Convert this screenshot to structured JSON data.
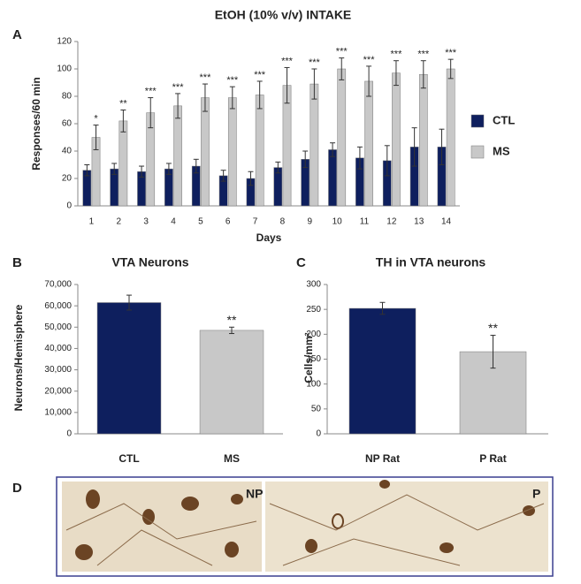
{
  "chart_data": [
    {
      "type": "bar",
      "label": "A",
      "title": "EtOH (10% v/v)  INTAKE",
      "y_label": "Responses/60 min",
      "x_label": "Days",
      "categories": [
        "1",
        "2",
        "3",
        "4",
        "5",
        "6",
        "7",
        "8",
        "9",
        "10",
        "11",
        "12",
        "13",
        "14"
      ],
      "series": [
        {
          "name": "CTL",
          "color": "#0e1f5e",
          "values": [
            26,
            27,
            25,
            27,
            29,
            22,
            20,
            28,
            34,
            41,
            35,
            33,
            43,
            43
          ],
          "errors": [
            4,
            4,
            4,
            4,
            5,
            4,
            5,
            4,
            6,
            5,
            8,
            11,
            14,
            13
          ]
        },
        {
          "name": "MS",
          "color": "#c8c8c8",
          "values": [
            50,
            62,
            68,
            73,
            79,
            79,
            81,
            88,
            89,
            100,
            91,
            97,
            96,
            100
          ],
          "errors": [
            9,
            8,
            11,
            9,
            10,
            8,
            10,
            13,
            11,
            8,
            11,
            9,
            10,
            7
          ]
        }
      ],
      "annotations": [
        "*",
        "**",
        "***",
        "***",
        "***",
        "***",
        "***",
        "***",
        "***",
        "***",
        "***",
        "***",
        "***",
        "***"
      ],
      "ylim": [
        0,
        120
      ],
      "yticks": [
        0,
        20,
        40,
        60,
        80,
        100,
        120
      ],
      "legend": "right"
    },
    {
      "type": "bar",
      "label": "B",
      "title": "VTA Neurons",
      "y_label": "Neurons/Hemisphere",
      "categories": [
        "CTL",
        "MS"
      ],
      "values": [
        61500,
        48500
      ],
      "errors": [
        3500,
        1500
      ],
      "colors": [
        "#0e1f5e",
        "#c8c8c8"
      ],
      "annotations": [
        null,
        "**"
      ],
      "ylim": [
        0,
        70000
      ],
      "yticks": [
        0,
        {
          "value": 10000,
          "label": "10,000"
        },
        {
          "value": 20000,
          "label": "20,000"
        },
        {
          "value": 30000,
          "label": "30,000"
        },
        {
          "value": 40000,
          "label": "40,000"
        },
        {
          "value": 50000,
          "label": "50,000"
        },
        {
          "value": 60000,
          "label": "60,000"
        },
        {
          "value": 70000,
          "label": "70,000"
        }
      ]
    },
    {
      "type": "bar",
      "label": "C",
      "title": "TH in VTA neurons",
      "y_label": "Cells/mm²",
      "categories": [
        "NP Rat",
        "P Rat"
      ],
      "values": [
        252,
        165
      ],
      "errors": [
        12,
        33
      ],
      "colors": [
        "#0e1f5e",
        "#c8c8c8"
      ],
      "annotations": [
        null,
        "**"
      ],
      "ylim": [
        0,
        300
      ],
      "yticks": [
        0,
        50,
        100,
        150,
        200,
        250,
        300
      ]
    }
  ],
  "panel_d": {
    "label": "D",
    "images": [
      "NP",
      "P"
    ]
  }
}
